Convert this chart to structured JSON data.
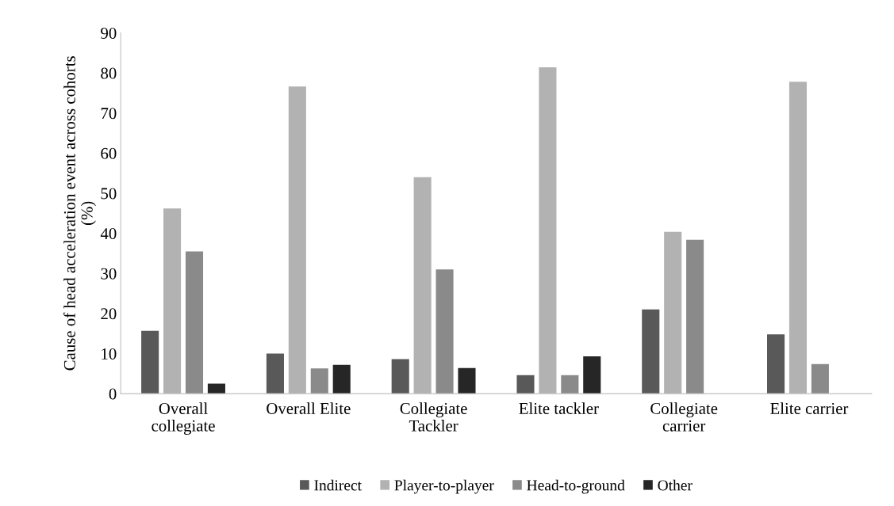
{
  "chart_data": {
    "type": "bar",
    "ylabel": "Cause of head acceleration event across cohorts\n(%)",
    "categories": [
      "Overall\ncollegiate",
      "Overall Elite",
      "Collegiate\nTackler",
      "Elite tackler",
      "Collegiate\ncarrier",
      "Elite carrier"
    ],
    "series": [
      {
        "name": "Indirect",
        "color": "#595959",
        "values": [
          15.7,
          10.0,
          8.6,
          4.6,
          21.0,
          14.8
        ]
      },
      {
        "name": "Player-to-player",
        "color": "#b2b2b2",
        "values": [
          46.2,
          76.6,
          54.0,
          81.4,
          40.4,
          77.8
        ]
      },
      {
        "name": "Head-to-ground",
        "color": "#8a8a8a",
        "values": [
          35.5,
          6.3,
          31.0,
          4.6,
          38.4,
          7.4
        ]
      },
      {
        "name": "Other",
        "color": "#262626",
        "values": [
          2.5,
          7.2,
          6.4,
          9.3,
          null,
          null
        ]
      }
    ],
    "ylim": [
      0,
      90
    ],
    "yticks": [
      0,
      10,
      20,
      30,
      40,
      50,
      60,
      70,
      80,
      90
    ],
    "grid": false,
    "legend": "bottom"
  }
}
